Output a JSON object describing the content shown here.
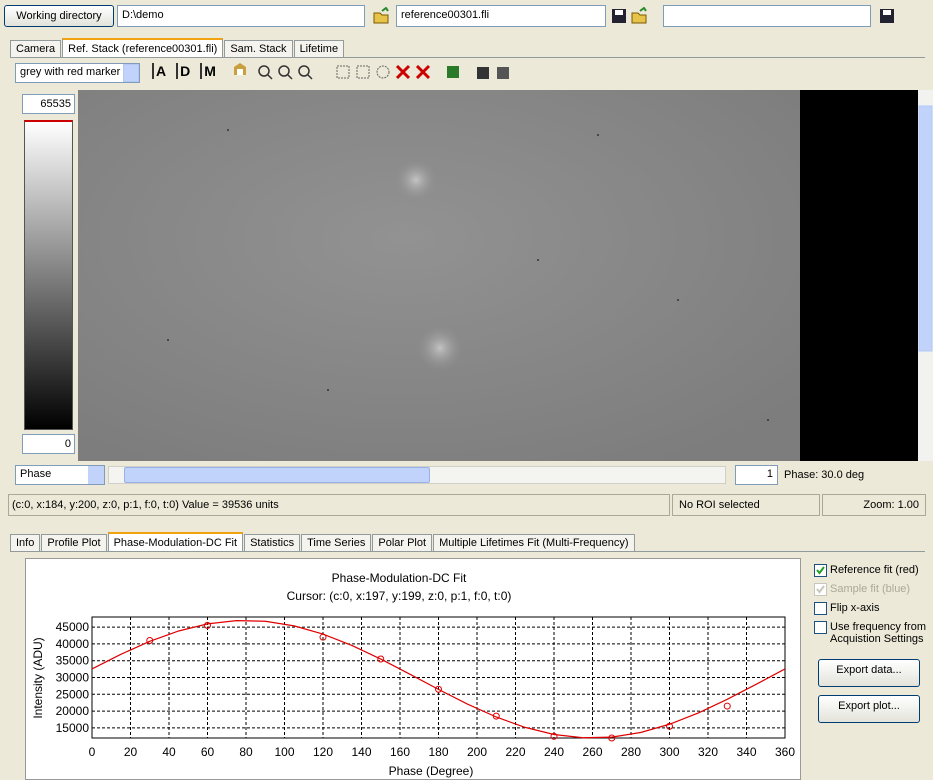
{
  "toolbar": {
    "working_directory_button": "Working directory",
    "directory": "D:\\demo",
    "reference_file": "reference00301.fli"
  },
  "image_tabs": {
    "items": [
      "Camera",
      "Ref. Stack (reference00301.fli)",
      "Sam. Stack",
      "Lifetime"
    ],
    "active": 1
  },
  "colormap": "grey with red marker",
  "tool_icons": [
    "A",
    "D",
    "M"
  ],
  "colorbar": {
    "max": 65535,
    "min": 0
  },
  "slider": {
    "dimension": "Phase",
    "index": 1,
    "label": "Phase: 30.0 deg"
  },
  "status": {
    "cursor": "(c:0, x:184, y:200, z:0, p:1, f:0, t:0) Value = 39536 units",
    "roi": "No ROI selected",
    "zoom": "Zoom: 1.00"
  },
  "analysis_tabs": {
    "items": [
      "Info",
      "Profile Plot",
      "Phase-Modulation-DC Fit",
      "Statistics",
      "Time Series",
      "Polar Plot",
      "Multiple Lifetimes Fit (Multi-Frequency)"
    ],
    "active": 2
  },
  "options": {
    "checkboxes": [
      {
        "label": "Reference fit (red)",
        "checked": true,
        "enabled": true
      },
      {
        "label": "Sample fit (blue)",
        "checked": true,
        "enabled": false
      },
      {
        "label": "Flip x-axis",
        "checked": false,
        "enabled": true
      },
      {
        "label": "Use frequency from Acquistion Settings",
        "checked": false,
        "enabled": true
      }
    ],
    "buttons": [
      "Export data...",
      "Export plot..."
    ]
  },
  "chart_data": {
    "type": "line",
    "title": "Phase-Modulation-DC Fit",
    "subtitle": "Cursor: (c:0, x:197, y:199, z:0, p:1, f:0, t:0)",
    "x_label": "Phase (Degree)",
    "y_label": "Intensity (ADU)",
    "xlim": [
      0,
      360
    ],
    "ylim": [
      12000,
      48000
    ],
    "xticks": [
      0,
      20,
      40,
      60,
      80,
      100,
      120,
      140,
      160,
      180,
      200,
      220,
      240,
      260,
      280,
      300,
      320,
      340,
      360
    ],
    "yticks": [
      15000,
      20000,
      25000,
      30000,
      35000,
      40000,
      45000
    ],
    "grid": true,
    "series": [
      {
        "type": "line",
        "color": "#e00000",
        "x": [
          0,
          15,
          30,
          45,
          60,
          75,
          90,
          105,
          120,
          135,
          150,
          165,
          180,
          195,
          210,
          225,
          240,
          255,
          270,
          285,
          300,
          315,
          330,
          345,
          360
        ],
        "values": [
          32540,
          36900,
          40750,
          43840,
          45950,
          46930,
          46730,
          45360,
          42910,
          39540,
          35490,
          31030,
          26460,
          22100,
          18250,
          15160,
          13050,
          12070,
          12270,
          13640,
          16090,
          19460,
          23510,
          27980,
          32540
        ]
      },
      {
        "type": "scatter",
        "color": "#e00000",
        "x": [
          30,
          60,
          120,
          150,
          180,
          210,
          240,
          270,
          300,
          330
        ],
        "values": [
          41000,
          45500,
          42000,
          35500,
          26500,
          18500,
          12500,
          12000,
          15500,
          21500
        ]
      }
    ]
  }
}
